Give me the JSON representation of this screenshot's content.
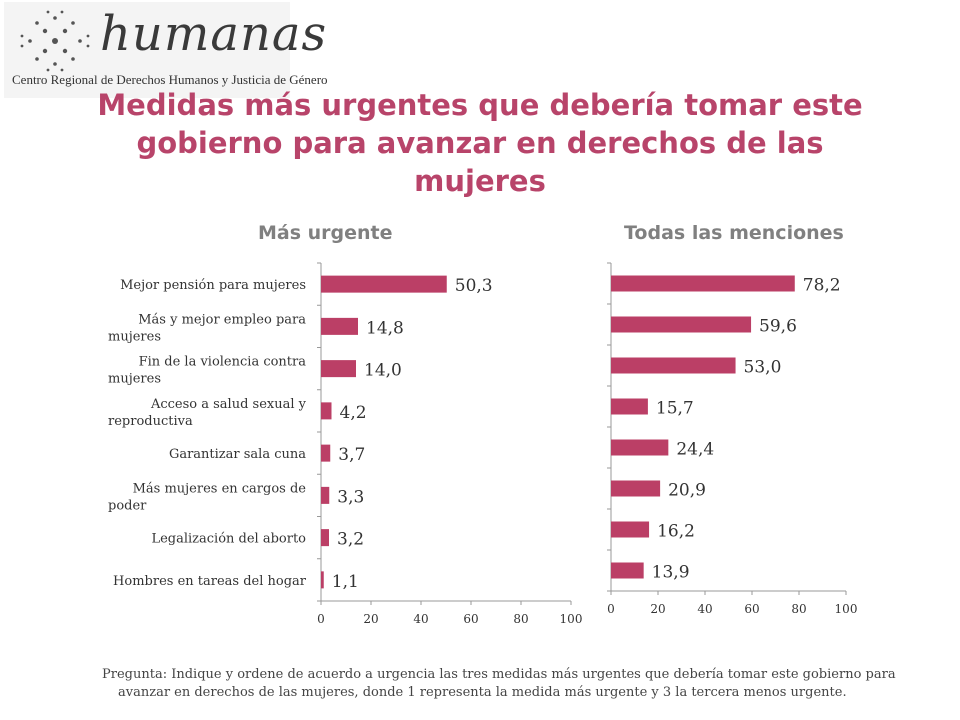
{
  "logo": {
    "name": "humanas",
    "subtitle": "Centro Regional de Derechos Humanos y Justicia de Género"
  },
  "title": "Medidas más urgentes que debería tomar este gobierno para avanzar en derechos de las mujeres",
  "footnote": "Pregunta: Indique y ordene de acuerdo a urgencia las tres medidas más urgentes que debería tomar este gobierno para avanzar en derechos de las mujeres, donde 1 representa la medida más urgente y 3 la tercera menos urgente.",
  "colors": {
    "bar": "#bb3f66",
    "title": "#b8446a",
    "subtitle": "#808080"
  },
  "chart_data": [
    {
      "type": "bar",
      "orientation": "horizontal",
      "title": "Más urgente",
      "categories": [
        "Mejor pensión para mujeres",
        "Más y mejor empleo para mujeres",
        "Fin de la violencia contra mujeres",
        "Acceso a salud sexual y reproductiva",
        "Garantizar sala cuna",
        "Más mujeres en cargos de poder",
        "Legalización del aborto",
        "Hombres en tareas del hogar"
      ],
      "values": [
        50.3,
        14.8,
        14.0,
        4.2,
        3.7,
        3.3,
        3.2,
        1.1
      ],
      "value_labels": [
        "50,3",
        "14,8",
        "14,0",
        "4,2",
        "3,7",
        "3,3",
        "3,2",
        "1,1"
      ],
      "xlim": [
        0,
        100
      ],
      "ticks": [
        "0",
        "20",
        "40",
        "60",
        "80",
        "100"
      ]
    },
    {
      "type": "bar",
      "orientation": "horizontal",
      "title": "Todas las menciones",
      "categories": [
        "Mejor pensión para mujeres",
        "Más y mejor empleo para mujeres",
        "Fin de la violencia contra mujeres",
        "Acceso a salud sexual y reproductiva",
        "Garantizar sala cuna",
        "Más mujeres en cargos de poder",
        "Legalización del aborto",
        "Hombres en tareas del hogar"
      ],
      "values": [
        78.2,
        59.6,
        53.0,
        15.7,
        24.4,
        20.9,
        16.2,
        13.9
      ],
      "value_labels": [
        "78,2",
        "59,6",
        "53,0",
        "15,7",
        "24,4",
        "20,9",
        "16,2",
        "13,9"
      ],
      "xlim": [
        0,
        100
      ],
      "ticks": [
        "0",
        "20",
        "40",
        "60",
        "80",
        "100"
      ]
    }
  ]
}
